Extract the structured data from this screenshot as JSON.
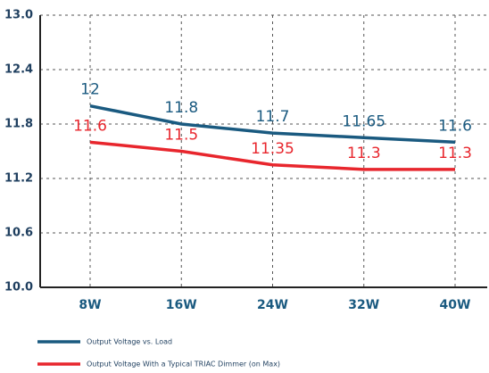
{
  "chart_data": {
    "type": "line",
    "categories": [
      "8W",
      "16W",
      "24W",
      "32W",
      "40W"
    ],
    "series": [
      {
        "name": "Output Voltage vs. Load",
        "color": "#1a5a80",
        "values": [
          12,
          11.8,
          11.7,
          11.65,
          11.6
        ]
      },
      {
        "name": "Output Voltage With a Typical TRIAC Dimmer (on Max)",
        "color": "#e8262d",
        "values": [
          11.6,
          11.5,
          11.35,
          11.3,
          11.3
        ]
      }
    ],
    "ylim": [
      10,
      13
    ],
    "yticks": [
      {
        "value": 10,
        "label": "10.0"
      },
      10.6,
      11.2,
      11.8,
      12.4,
      {
        "value": 13,
        "label": "13.0"
      }
    ],
    "grid": true,
    "legend": "bottom"
  }
}
